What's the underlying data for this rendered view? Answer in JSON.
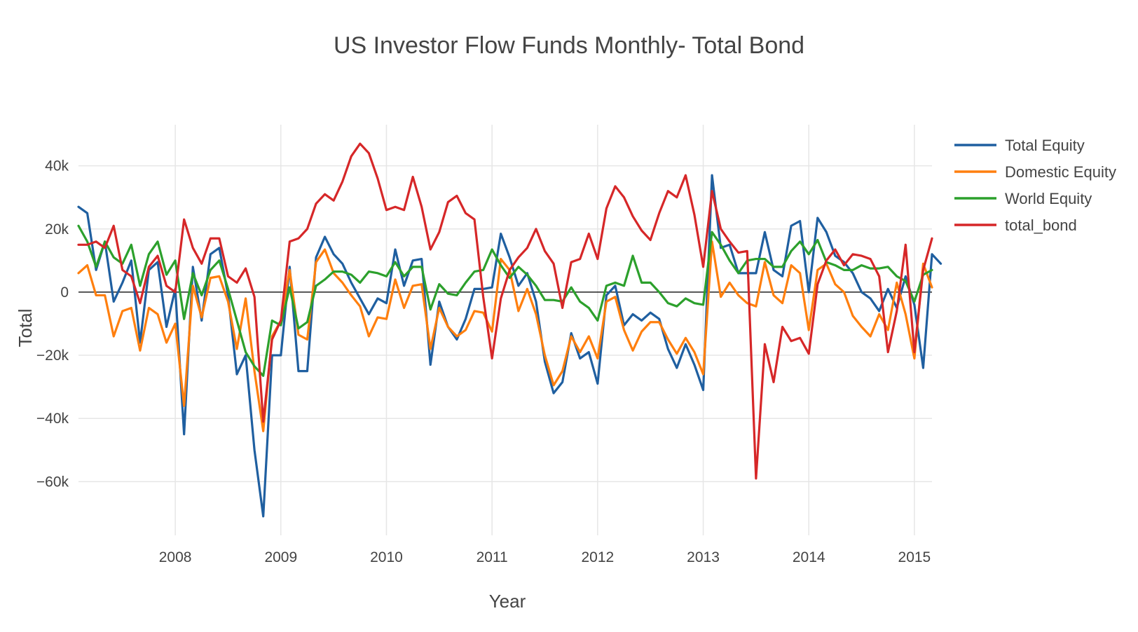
{
  "chart_data": {
    "type": "line",
    "title": "US Investor Flow Funds Monthly- Total Bond",
    "xlabel": "Year",
    "ylabel": "Total",
    "x_start": "2007-02",
    "xlim": [
      "2007-02",
      "2015-03"
    ],
    "ylim": [
      -77000,
      53000
    ],
    "x_ticks": [
      "2008",
      "2009",
      "2010",
      "2011",
      "2012",
      "2013",
      "2014",
      "2015"
    ],
    "y_ticks": [
      {
        "value": 40000,
        "label": "40k"
      },
      {
        "value": 20000,
        "label": "20k"
      },
      {
        "value": 0,
        "label": "0"
      },
      {
        "value": -20000,
        "label": "−20k"
      },
      {
        "value": -40000,
        "label": "−40k"
      },
      {
        "value": -60000,
        "label": "−60k"
      }
    ],
    "grid": true,
    "legend_position": "top-right",
    "series": [
      {
        "name": "Total Equity",
        "color": "#1f5fa0",
        "values": [
          27000,
          25000,
          7000,
          16000,
          -3000,
          3000,
          10000,
          -16000,
          7000,
          9500,
          -11000,
          1000,
          -45000,
          8000,
          -9000,
          12000,
          14000,
          -1000,
          -26000,
          -20000,
          -50000,
          -71000,
          -20000,
          -20000,
          8000,
          -25000,
          -25000,
          11000,
          17500,
          12000,
          9000,
          3000,
          -2000,
          -7000,
          -2000,
          -3500,
          13500,
          2000,
          10000,
          10500,
          -23000,
          -3000,
          -11000,
          -15000,
          -8500,
          1000,
          1000,
          1500,
          18500,
          11000,
          2000,
          6000,
          -3000,
          -22000,
          -32000,
          -28500,
          -13000,
          -21000,
          -19000,
          -29000,
          -1000,
          2000,
          -10500,
          -7000,
          -9000,
          -6500,
          -8500,
          -18000,
          -24000,
          -16500,
          -23000,
          -31000,
          37000,
          14000,
          15000,
          6000,
          6000,
          6000,
          19000,
          7000,
          5000,
          21000,
          22500,
          0,
          23500,
          19000,
          11500,
          9500,
          6000,
          0,
          -2000,
          -6000,
          1000,
          -5000,
          5000,
          -4000,
          -24000,
          12000,
          9000
        ]
      },
      {
        "name": "Domestic Equity",
        "color": "#ff7f0e",
        "values": [
          6000,
          8500,
          -1000,
          -1000,
          -14000,
          -6000,
          -5000,
          -18500,
          -5000,
          -7000,
          -16000,
          -10000,
          -36000,
          2000,
          -8000,
          4500,
          5000,
          -3000,
          -18000,
          -2000,
          -25000,
          -44000,
          -14000,
          -9000,
          7000,
          -13500,
          -15000,
          9500,
          13500,
          6000,
          3000,
          -1000,
          -4500,
          -14000,
          -8000,
          -8500,
          4000,
          -5000,
          2000,
          2500,
          -18000,
          -5000,
          -11000,
          -14000,
          -12000,
          -6000,
          -6500,
          -12500,
          10500,
          7000,
          -6000,
          1000,
          -7000,
          -20000,
          -29500,
          -25000,
          -14000,
          -19000,
          -14000,
          -21000,
          -3000,
          -1500,
          -12000,
          -18500,
          -12500,
          -9500,
          -9500,
          -15000,
          -19500,
          -14500,
          -19000,
          -26000,
          16000,
          -1500,
          3000,
          -1000,
          -3500,
          -4500,
          9500,
          -1000,
          -3500,
          8500,
          6000,
          -12000,
          7000,
          9000,
          2500,
          0,
          -7500,
          -11000,
          -14000,
          -7000,
          -12000,
          3000,
          -7000,
          -21000,
          9000,
          1500
        ]
      },
      {
        "name": "World Equity",
        "color": "#2ca02c",
        "values": [
          21000,
          16000,
          8000,
          16000,
          11000,
          9000,
          15000,
          2000,
          12000,
          16000,
          5500,
          10000,
          -8500,
          6000,
          -1000,
          7000,
          10000,
          1000,
          -9000,
          -19000,
          -23500,
          -26500,
          -9000,
          -10500,
          1500,
          -11500,
          -9500,
          2000,
          4000,
          6500,
          6500,
          5500,
          3000,
          6500,
          6000,
          5000,
          9500,
          5000,
          8000,
          8000,
          -5500,
          2500,
          -500,
          -1000,
          3000,
          6500,
          7000,
          13500,
          8500,
          4500,
          8000,
          5500,
          2000,
          -2500,
          -2500,
          -3000,
          1500,
          -3000,
          -5000,
          -9000,
          2000,
          3000,
          2000,
          11500,
          3000,
          3000,
          0,
          -3500,
          -4500,
          -2000,
          -3500,
          -4000,
          19000,
          15000,
          10000,
          6000,
          10000,
          10500,
          10500,
          8000,
          8000,
          13000,
          16000,
          12000,
          16500,
          9500,
          8500,
          7000,
          7000,
          8500,
          7500,
          7500,
          8000,
          5000,
          3500,
          -3000,
          5500,
          7000
        ]
      },
      {
        "name": "total_bond",
        "color": "#d62728",
        "values": [
          15000,
          15000,
          16000,
          14000,
          21000,
          7000,
          5000,
          -3500,
          8000,
          11500,
          2000,
          0,
          23000,
          14000,
          9000,
          17000,
          17000,
          5000,
          3000,
          7500,
          -1500,
          -41000,
          -15000,
          -9000,
          16000,
          17000,
          20000,
          28000,
          31000,
          29000,
          35000,
          43000,
          47000,
          44000,
          36000,
          26000,
          27000,
          26000,
          36500,
          27000,
          13500,
          19000,
          28500,
          30500,
          25000,
          23000,
          -1500,
          -21000,
          -2000,
          7000,
          11000,
          14000,
          20000,
          13000,
          9000,
          -5000,
          9500,
          10500,
          18500,
          10500,
          26500,
          33500,
          30000,
          24000,
          19500,
          16500,
          25000,
          32000,
          30000,
          37000,
          24500,
          8000,
          32000,
          20000,
          16000,
          12500,
          13000,
          -59000,
          -16500,
          -28500,
          -11000,
          -15500,
          -14500,
          -19500,
          2500,
          10000,
          13500,
          8500,
          12000,
          11500,
          10500,
          5000,
          -19000,
          -6000,
          15000,
          -19000,
          7000,
          17000
        ]
      }
    ]
  }
}
